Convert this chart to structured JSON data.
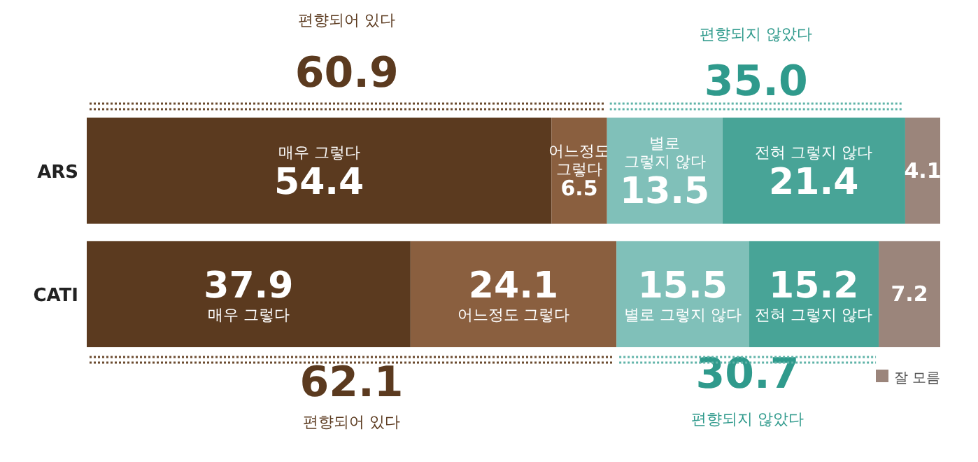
{
  "chart_data": {
    "type": "bar",
    "orientation": "horizontal",
    "stacked": true,
    "categories": [
      "ARS",
      "CATI"
    ],
    "series": [
      {
        "name": "매우 그렇다",
        "color": "#5b3a1f",
        "values": [
          54.4,
          37.9
        ]
      },
      {
        "name": "어느정도 그렇다",
        "color": "#8a5f3f",
        "values": [
          6.5,
          24.1
        ]
      },
      {
        "name": "별로 그렇지 않다",
        "color": "#80c0b9",
        "values": [
          13.5,
          15.5
        ]
      },
      {
        "name": "전혀 그렇지 않다",
        "color": "#48a497",
        "values": [
          21.4,
          15.2
        ]
      },
      {
        "name": "잘 모름",
        "color": "#9b857b",
        "values": [
          4.1,
          7.2
        ]
      }
    ],
    "data_labels": true,
    "legend": "bottom right",
    "annotations": [
      "편향되어 있다",
      "60.9",
      "편향되지 않았다",
      "35.0",
      "62.1",
      "편향되어 있다",
      "30.7",
      "편향되지 않았다"
    ]
  }
}
